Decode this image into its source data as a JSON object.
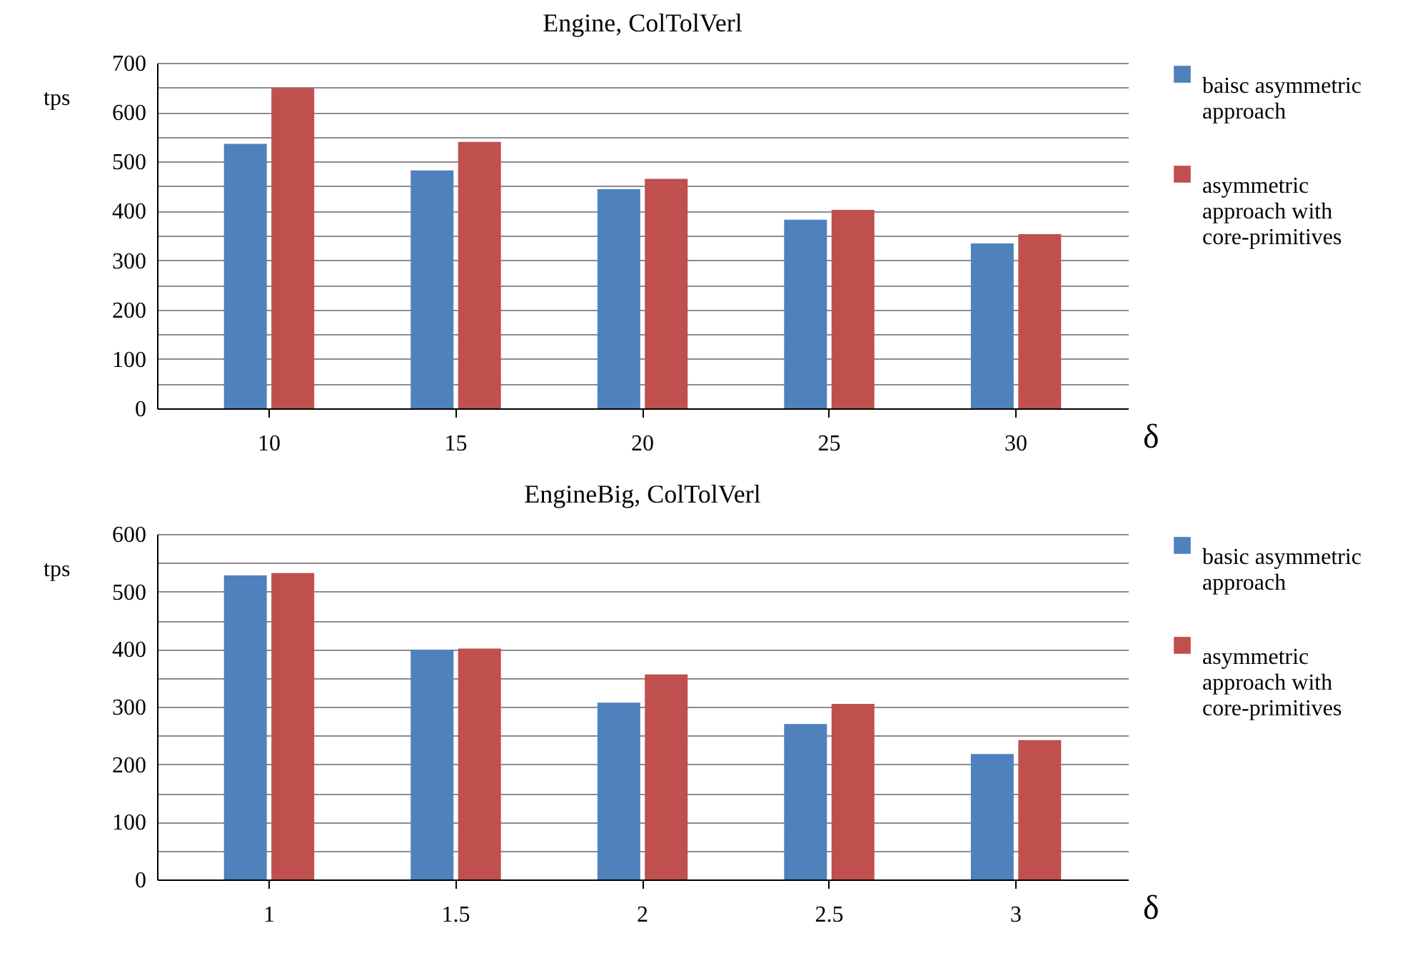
{
  "chart_data": [
    {
      "type": "bar",
      "title": "Engine, ColTolVerl",
      "xlabel": "δ",
      "ylabel": "tps",
      "categories": [
        "10",
        "15",
        "20",
        "25",
        "30"
      ],
      "series": [
        {
          "name": "baisc asymmetric approach",
          "color": "#4f81bd",
          "values": [
            536,
            482,
            444,
            382,
            334
          ]
        },
        {
          "name": "asymmetric approach with core-primitives",
          "color": "#c0504d",
          "values": [
            649,
            540,
            465,
            402,
            353
          ]
        }
      ],
      "ylim": [
        0,
        700
      ],
      "yticks": [
        0,
        {
          "value": 50,
          "label": null
        },
        100,
        {
          "value": 150,
          "label": null
        },
        200,
        {
          "value": 250,
          "label": null
        },
        300,
        {
          "value": 350,
          "label": null
        },
        400,
        {
          "value": 450,
          "label": null
        },
        500,
        {
          "value": 550,
          "label": null
        },
        600,
        {
          "value": 650,
          "label": null
        },
        700
      ],
      "grid": "y",
      "legend": "right"
    },
    {
      "type": "bar",
      "title": "EngineBig, ColTolVerl",
      "xlabel": "δ",
      "ylabel": "tps",
      "categories": [
        "1",
        "1.5",
        "2",
        "2.5",
        "3"
      ],
      "series": [
        {
          "name": "basic asymmetric approach",
          "color": "#4f81bd",
          "values": [
            528,
            399,
            307,
            270,
            218
          ]
        },
        {
          "name": "asymmetric approach with core-primitives",
          "color": "#c0504d",
          "values": [
            532,
            401,
            356,
            305,
            242
          ]
        }
      ],
      "ylim": [
        0,
        600
      ],
      "yticks": [
        0,
        {
          "value": 50,
          "label": null
        },
        100,
        {
          "value": 150,
          "label": null
        },
        200,
        {
          "value": 250,
          "label": null
        },
        300,
        {
          "value": 350,
          "label": null
        },
        400,
        {
          "value": 450,
          "label": null
        },
        500,
        {
          "value": 550,
          "label": null
        },
        600
      ],
      "grid": "y",
      "legend": "right"
    }
  ]
}
